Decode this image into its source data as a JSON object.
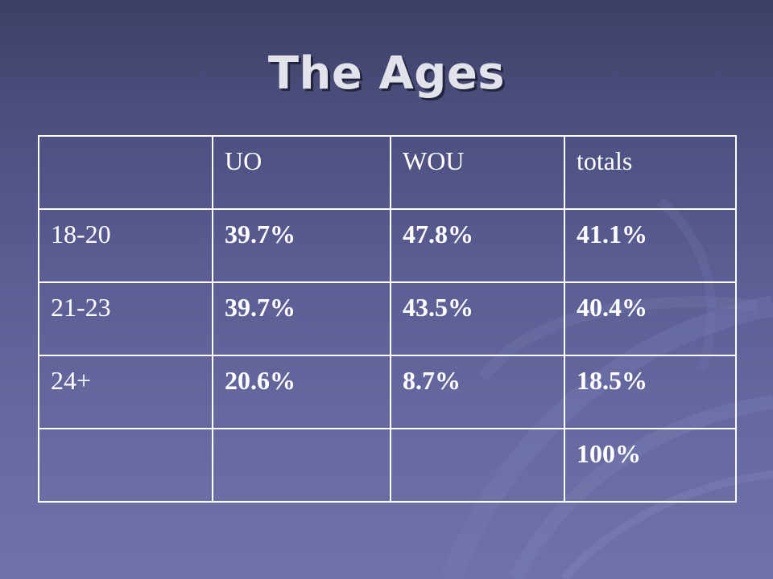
{
  "slide": {
    "title": "The Ages"
  },
  "table": {
    "header": [
      "",
      "UO",
      "WOU",
      "totals"
    ],
    "rows": [
      {
        "label": "18-20",
        "uo": "39.7%",
        "wou": "47.8%",
        "totals": "41.1%"
      },
      {
        "label": "21-23",
        "uo": "39.7%",
        "wou": "43.5%",
        "totals": "40.4%"
      },
      {
        "label": "24+",
        "uo": "20.6%",
        "wou": "8.7%",
        "totals": "18.5%"
      },
      {
        "label": "",
        "uo": "",
        "wou": "",
        "totals": "100%"
      }
    ]
  },
  "colors": {
    "background_top": "#3d3f65",
    "background_bottom": "#6f71a8",
    "title": "#e2e2ea",
    "cell_text": "#ffffff",
    "border": "#ffffff"
  }
}
